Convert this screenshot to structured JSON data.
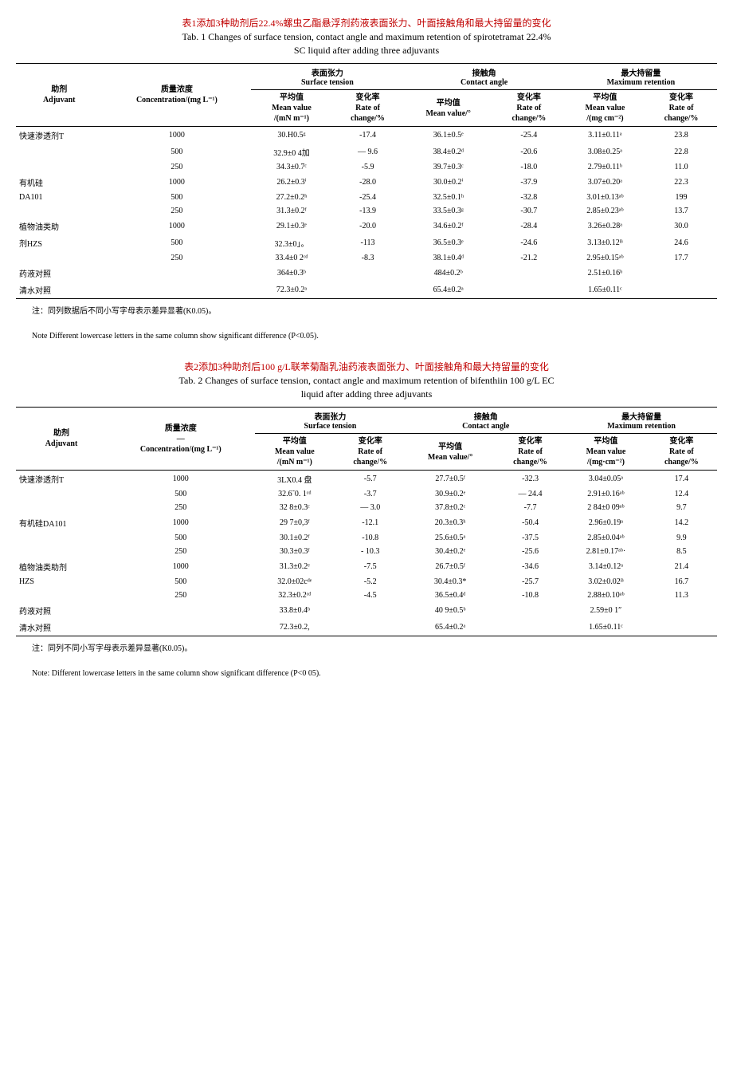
{
  "table1": {
    "title_cn": "表1添加3种助剂后22.4%螺虫乙酯悬浮剂药液表面张力、叶面接触角和最大持留量的变化",
    "title_en1": "Tab. 1 Changes of surface tension, contact angle and maximum retention of spirotetramat 22.4%",
    "title_en2": "SC liquid after adding three adjuvants",
    "headers": {
      "adjuvant_cn": "助剂",
      "adjuvant_en": "Adjuvant",
      "conc_cn": "质量浓度",
      "conc_en": "Concentration/(mg L⁻¹)",
      "tension_cn": "表面张力",
      "tension_en": "Surface tension",
      "angle_cn": "接触角",
      "angle_en": "Contact angle",
      "retention_cn": "最大持留量",
      "retention_en": "Maximum retention",
      "mean_cn": "平均值",
      "mean_en": "Mean value",
      "tension_unit": "/(mN m⁻¹)",
      "angle_unit": "Mean value/°",
      "retention_unit": "/(mg cm⁻²)",
      "change_cn": "变化率",
      "change_en": "Rate of",
      "change_unit": "change/%"
    },
    "rows": [
      {
        "adj": "快速渗透剂T",
        "conc": "1000",
        "t": "30.H0.5ᵍ",
        "tc": "-17.4",
        "a": "36.1±0.5ᵉ",
        "ac": "-25.4",
        "r": "3.11±0.11ᵃ",
        "rc": "23.8"
      },
      {
        "adj": "",
        "conc": "500",
        "t": "32.9±0 4加",
        "tc": "— 9.6",
        "a": "38.4±0.2ᵈ",
        "ac": "-20.6",
        "r": "3.08±0.25ᵃ",
        "rc": "22.8"
      },
      {
        "adj": "",
        "conc": "250",
        "t": "34.3±0.7ᶜ",
        "tc": "-5.9",
        "a": "39.7±0.3ᶜ",
        "ac": "-18.0",
        "r": "2.79±0.11ᵇ",
        "rc": "11.0"
      },
      {
        "adj": "有机硅",
        "conc": "1000",
        "t": "26.2±0.3ⁱ",
        "tc": "-28.0",
        "a": "30.0±0.2ⁱ",
        "ac": "-37.9",
        "r": "3.07±0.20ᵃ",
        "rc": "22.3"
      },
      {
        "adj": "DA101",
        "conc": "500",
        "t": "27.2±0.2ʰ",
        "tc": "-25.4",
        "a": "32.5±0.1ʰ",
        "ac": "-32.8",
        "r": "3.01±0.13ᵃᵇ",
        "rc": "199"
      },
      {
        "adj": "",
        "conc": "250",
        "t": "31.3±0.2ᶠ",
        "tc": "-13.9",
        "a": "33.5±0.3ᵍ",
        "ac": "-30.7",
        "r": "2.85±0.23ᵃᵇ",
        "rc": "13.7"
      },
      {
        "adj": "植物油类助",
        "conc": "1000",
        "t": "29.1±0.3ᵉ",
        "tc": "-20.0",
        "a": "34.6±0.2ᶠ",
        "ac": "-28.4",
        "r": "3.26±0.28ᵃ",
        "rc": "30.0"
      },
      {
        "adj": "剂HZS",
        "conc": "500",
        "t": "32.3±0」。",
        "tc": "-113",
        "a": "36.5±0.3ᵉ",
        "ac": "-24.6",
        "r": "3.13±0.12ᴮ",
        "rc": "24.6"
      },
      {
        "adj": "",
        "conc": "250",
        "t": "33.4±0 2ᶜᵈ",
        "tc": "-8.3",
        "a": "38.1±0.4ᵈ",
        "ac": "-21.2",
        "r": "2.95±0.15ᵃᵇ",
        "rc": "17.7"
      },
      {
        "adj": "药液对照",
        "conc": "",
        "t": "364±0.3ᵇ",
        "tc": "",
        "a": "484±0.2ᵇ",
        "ac": "",
        "r": "2.51±0.16ᵇ",
        "rc": ""
      },
      {
        "adj": "清水对照",
        "conc": "",
        "t": "72.3±0.2ᵃ",
        "tc": "",
        "a": "65.4±0.2ᵃ",
        "ac": "",
        "r": "1.65±0.11ᶜ",
        "rc": ""
      }
    ],
    "note_cn": "注：同列数据后不同小写字母表示差异显著(K0.05)。",
    "note_en": "Note Different lowercase letters in the same column show significant difference (P<0.05)."
  },
  "table2": {
    "title_cn": "表2添加3种助剂后100 g/L联苯菊酯乳油药液表面张力、叶面接触角和最大持留量的变化",
    "title_en1": "Tab. 2 Changes of surface tension, contact angle and maximum retention of bifenthiin 100 g/L EC",
    "title_en2": "liquid after adding three adjuvants",
    "rows": [
      {
        "adj": "快速渗透剂T",
        "conc": "1000",
        "t": "3LX0.4 盘",
        "tc": "-5.7",
        "a": "27.7±0.5ᶠ",
        "ac": "-32.3",
        "r": "3.04±0.05ᵃ",
        "rc": "17.4"
      },
      {
        "adj": "",
        "conc": "500",
        "t": "32.6˜0. 1ᶜᵈ",
        "tc": "-3.7",
        "a": "30.9±0.2ᵉ",
        "ac": "— 24.4",
        "r": "2.91±0.16ᵃᵇ",
        "rc": "12.4"
      },
      {
        "adj": "",
        "conc": "250",
        "t": "32 8±0.3ᶜ",
        "tc": "— 3.0",
        "a": "37.8±0.2ᶜ",
        "ac": "-7.7",
        "r": "2 84±0 09ᵃᵇ",
        "rc": "9.7"
      },
      {
        "adj": "有机硅DA101",
        "conc": "1000",
        "t": "29 7±0,3ᶠ",
        "tc": "-12.1",
        "a": "20.3±0.3ʰ",
        "ac": "-50.4",
        "r": "2.96±0.19ᵃ",
        "rc": "14.2"
      },
      {
        "adj": "",
        "conc": "500",
        "t": "30.1±0.2ᶠ",
        "tc": "-10.8",
        "a": "25.6±0.5ᵃ",
        "ac": "-37.5",
        "r": "2.85±0.04ᵃᵇ",
        "rc": "9.9"
      },
      {
        "adj": "",
        "conc": "250",
        "t": "30.3±0.3ᶠ",
        "tc": "- 10.3",
        "a": "30.4±0.2ᵉ",
        "ac": "-25.6",
        "r": "2.81±0.17ᵃᵇ·",
        "rc": "8.5"
      },
      {
        "adj": "植物油类助剂",
        "conc": "1000",
        "t": "31.3±0.2ᵉ",
        "tc": "-7.5",
        "a": "26.7±0.5ᶠ",
        "ac": "-34.6",
        "r": "3.14±0.12ᵃ",
        "rc": "21.4"
      },
      {
        "adj": "HZS",
        "conc": "500",
        "t": "32.0±02cᵈᵉ",
        "tc": "-5.2",
        "a": "30.4±0.3*",
        "ac": "-25.7",
        "r": "3.02±0.02ᴮ",
        "rc": "16.7"
      },
      {
        "adj": "",
        "conc": "250",
        "t": "32.3±0.2ᶜᵈ",
        "tc": "-4.5",
        "a": "36.5±0.4ᵈ",
        "ac": "-10.8",
        "r": "2.88±0.10ᵃᵇ",
        "rc": "11.3"
      },
      {
        "adj": "药液对照",
        "conc": "",
        "t": "33.8±0.4ᵇ",
        "tc": "",
        "a": "40 9±0.5ᵇ",
        "ac": "",
        "r": "2.59±0 1″",
        "rc": ""
      },
      {
        "adj": "清水对照",
        "conc": "",
        "t": "72.3±0.2,",
        "tc": "",
        "a": "65.4±0.2ᵃ",
        "ac": "",
        "r": "1.65±0.11ᶜ",
        "rc": ""
      }
    ],
    "note_cn": "注：同列不同小写字母表示差异显著(K0.05)。",
    "note_en": "Note: Different lowercase letters in the same column show significant difference (P<0 05)."
  }
}
